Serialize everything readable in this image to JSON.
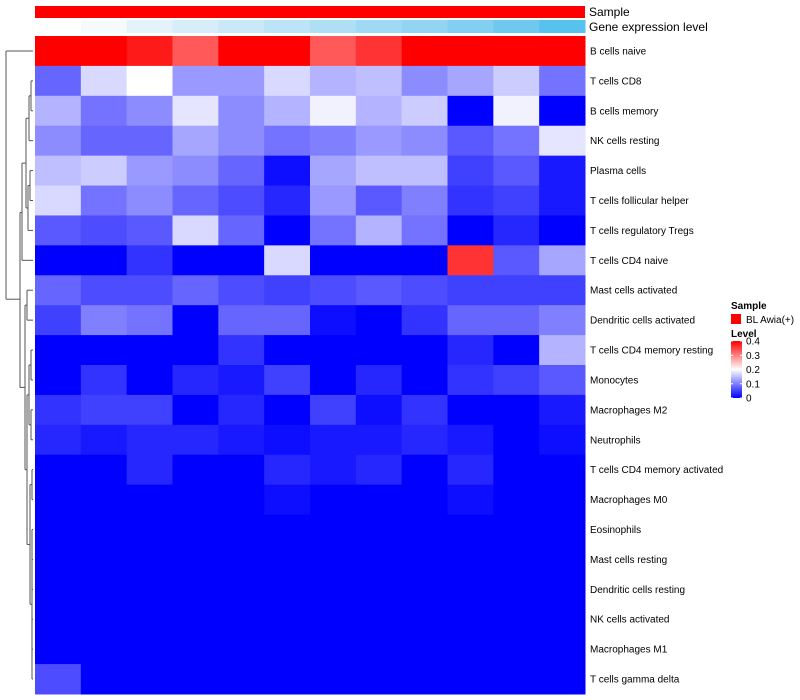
{
  "chart_data": {
    "type": "heatmap",
    "annotations": {
      "sample_label": "Sample",
      "expression_label": "Gene expression level",
      "sample_color": "#ff0000",
      "expression_colors": [
        "#ffffff",
        "#f6fafd",
        "#e4f2fa",
        "#d7edf9",
        "#cae8f7",
        "#bce3f6",
        "#aedff5",
        "#a0d9f3",
        "#92d4f2",
        "#82cff1",
        "#6fc9ef",
        "#57c2ee"
      ]
    },
    "rows": [
      "B cells naive",
      "T cells CD8",
      "B cells memory",
      "NK cells resting",
      "Plasma cells",
      "T cells follicular helper",
      "T cells regulatory  Tregs",
      "T cells CD4 naive",
      "Mast cells activated",
      "Dendritic cells activated",
      "T cells CD4 memory resting",
      "Monocytes",
      "Macrophages M2",
      "Neutrophils",
      "T cells CD4 memory activated",
      "Macrophages M0",
      "Eosinophils",
      "Mast cells resting",
      "Dendritic cells resting",
      "NK cells activated",
      "Macrophages M1",
      "T cells gamma delta"
    ],
    "values": [
      [
        0.42,
        0.46,
        0.38,
        0.33,
        0.47,
        0.47,
        0.33,
        0.36,
        0.42,
        0.46,
        0.43,
        0.46
      ],
      [
        0.08,
        0.17,
        0.2,
        0.12,
        0.12,
        0.17,
        0.14,
        0.15,
        0.11,
        0.13,
        0.16,
        0.09
      ],
      [
        0.14,
        0.09,
        0.11,
        0.18,
        0.11,
        0.14,
        0.19,
        0.14,
        0.16,
        0.0,
        0.19,
        0.0
      ],
      [
        0.11,
        0.08,
        0.08,
        0.13,
        0.11,
        0.09,
        0.1,
        0.12,
        0.11,
        0.07,
        0.09,
        0.18
      ],
      [
        0.15,
        0.16,
        0.12,
        0.11,
        0.08,
        0.01,
        0.13,
        0.15,
        0.15,
        0.05,
        0.07,
        0.02
      ],
      [
        0.17,
        0.09,
        0.11,
        0.08,
        0.06,
        0.03,
        0.12,
        0.07,
        0.1,
        0.04,
        0.05,
        0.02
      ],
      [
        0.07,
        0.06,
        0.07,
        0.17,
        0.08,
        0.0,
        0.09,
        0.14,
        0.09,
        0.0,
        0.03,
        0.0
      ],
      [
        0.0,
        0.0,
        0.04,
        0.0,
        0.0,
        0.17,
        0.0,
        0.0,
        0.0,
        0.36,
        0.07,
        0.13
      ],
      [
        0.08,
        0.06,
        0.06,
        0.08,
        0.06,
        0.05,
        0.06,
        0.07,
        0.06,
        0.05,
        0.05,
        0.05
      ],
      [
        0.05,
        0.1,
        0.09,
        0.0,
        0.08,
        0.08,
        0.01,
        0.0,
        0.04,
        0.08,
        0.08,
        0.1
      ],
      [
        0.0,
        0.0,
        0.0,
        0.0,
        0.04,
        0.0,
        0.0,
        0.0,
        0.0,
        0.03,
        0.0,
        0.14
      ],
      [
        0.0,
        0.04,
        0.0,
        0.03,
        0.02,
        0.05,
        0.0,
        0.03,
        0.0,
        0.04,
        0.05,
        0.07
      ],
      [
        0.04,
        0.05,
        0.05,
        0.0,
        0.03,
        0.0,
        0.05,
        0.01,
        0.04,
        0.0,
        0.0,
        0.02
      ],
      [
        0.03,
        0.02,
        0.03,
        0.03,
        0.02,
        0.01,
        0.02,
        0.02,
        0.03,
        0.02,
        0.0,
        0.01
      ],
      [
        0.0,
        0.0,
        0.03,
        0.0,
        0.0,
        0.03,
        0.02,
        0.03,
        0.0,
        0.03,
        0.0,
        0.0
      ],
      [
        0.0,
        0.0,
        0.0,
        0.0,
        0.0,
        0.01,
        0.0,
        0.0,
        0.0,
        0.01,
        0.0,
        0.0
      ],
      [
        0.0,
        0.0,
        0.0,
        0.0,
        0.0,
        0.0,
        0.0,
        0.0,
        0.0,
        0.0,
        0.0,
        0.0
      ],
      [
        0.0,
        0.0,
        0.0,
        0.0,
        0.0,
        0.0,
        0.0,
        0.0,
        0.0,
        0.0,
        0.0,
        0.0
      ],
      [
        0.0,
        0.0,
        0.0,
        0.0,
        0.0,
        0.0,
        0.0,
        0.0,
        0.0,
        0.0,
        0.0,
        0.0
      ],
      [
        0.0,
        0.0,
        0.0,
        0.0,
        0.0,
        0.0,
        0.0,
        0.0,
        0.0,
        0.0,
        0.0,
        0.0
      ],
      [
        0.0,
        0.0,
        0.0,
        0.0,
        0.0,
        0.0,
        0.0,
        0.0,
        0.0,
        0.0,
        0.0,
        0.0
      ],
      [
        0.06,
        0.0,
        0.0,
        0.0,
        0.0,
        0.0,
        0.0,
        0.0,
        0.0,
        0.0,
        0.0,
        0.0
      ]
    ],
    "color_scale": {
      "range": [
        0,
        0.4
      ],
      "stops": [
        {
          "value": 0.0,
          "color": "#0000ff"
        },
        {
          "value": 0.2,
          "color": "#ffffff"
        },
        {
          "value": 0.4,
          "color": "#ff0000"
        }
      ]
    },
    "legend": {
      "sample_title": "Sample",
      "sample_entry": "BL Awia(+)",
      "level_title": "Level",
      "ticks": [
        "0.4",
        "0.3",
        "0.2",
        "0.1",
        "0"
      ],
      "tick_values": [
        0.4,
        0.3,
        0.2,
        0.1,
        0
      ]
    }
  }
}
